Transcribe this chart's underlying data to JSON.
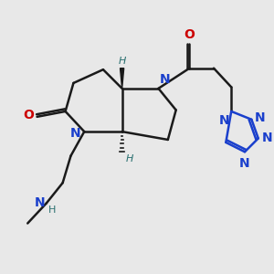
{
  "bg_color": "#e8e8e8",
  "bond_color": "#1a1a1a",
  "nitrogen_color": "#1a3fcc",
  "oxygen_color": "#cc0000",
  "stereo_h_color": "#2a7070",
  "figsize": [
    3.0,
    3.0
  ],
  "dpi": 100,
  "xlim": [
    0,
    10
  ],
  "ylim": [
    0,
    10
  ]
}
